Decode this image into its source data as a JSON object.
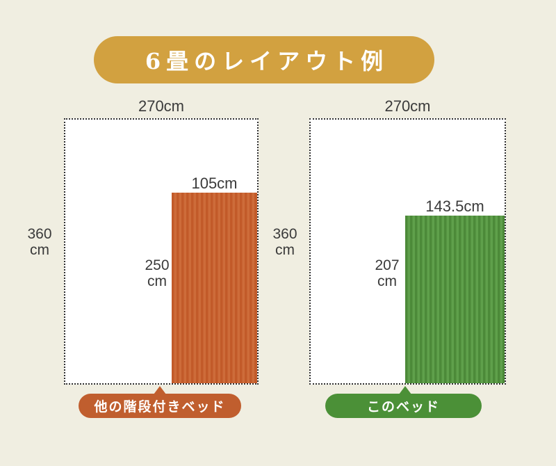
{
  "page": {
    "background_color": "#f0eee1",
    "text_color": "#3a3a3a"
  },
  "title": {
    "text": "6畳のレイアウト例",
    "background_color": "#d2a140",
    "text_color": "#ffffff"
  },
  "diagrams": [
    {
      "id": "other-stair-bed",
      "room_width_label": "270cm",
      "room_depth_line1": "360",
      "room_depth_line2": "cm",
      "bed_width_label": "105cm",
      "bed_depth_line1": "250",
      "bed_depth_line2": "cm",
      "badge_label": "他の階段付きベッド",
      "bed_stripe_dark": "#c25a29",
      "bed_stripe_light": "#cd6c3a",
      "badge_color": "#c05e2e"
    },
    {
      "id": "this-bed",
      "room_width_label": "270cm",
      "room_depth_line1": "360",
      "room_depth_line2": "cm",
      "bed_width_label": "143.5cm",
      "bed_depth_line1": "207",
      "bed_depth_line2": "cm",
      "badge_label": "このベッド",
      "bed_stripe_dark": "#4c8a39",
      "bed_stripe_light": "#5fa04b",
      "badge_color": "#4b9037"
    }
  ]
}
